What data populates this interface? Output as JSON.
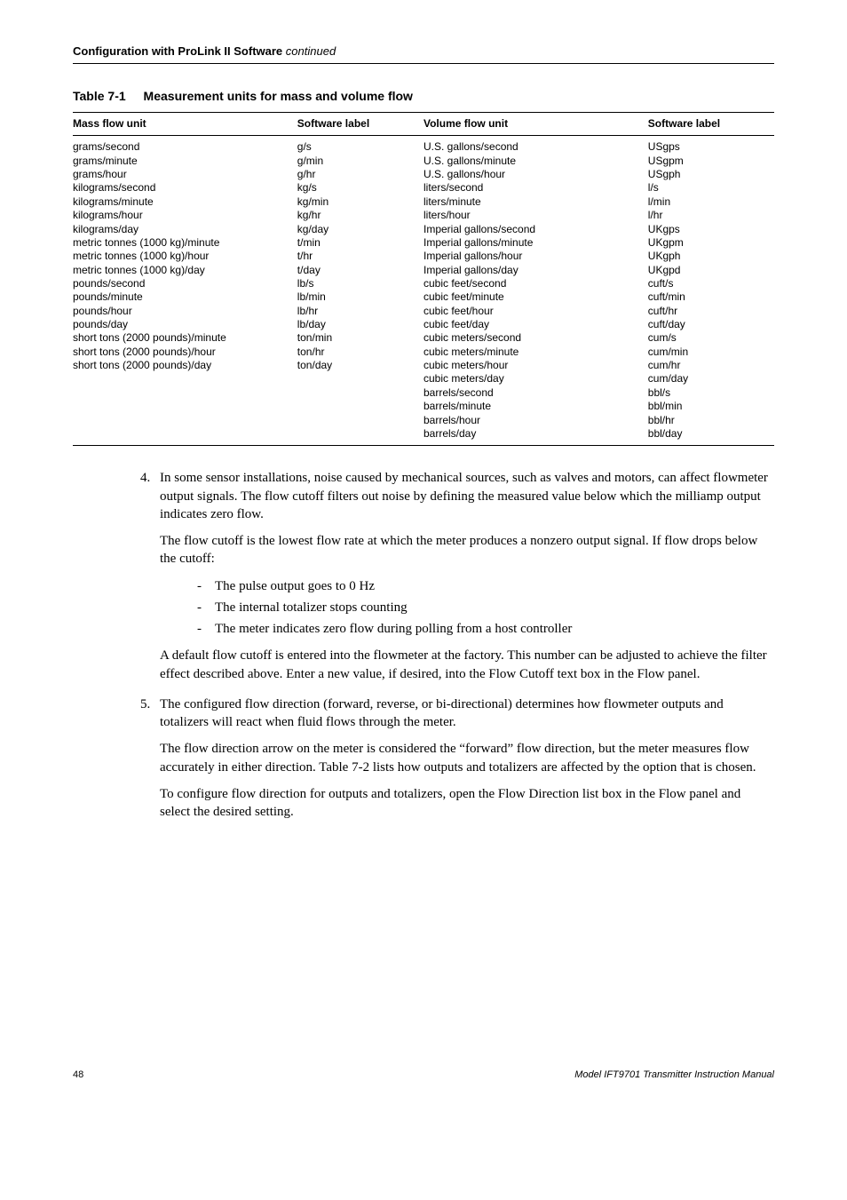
{
  "header": {
    "section_title": "Configuration with ProLink II Software",
    "continued": "continued"
  },
  "table": {
    "caption_number": "Table 7-1",
    "caption_title": "Measurement units for mass and volume flow",
    "columns": [
      "Mass flow unit",
      "Software label",
      "Volume flow unit",
      "Software label"
    ],
    "mass_units": [
      [
        "grams/second",
        "g/s"
      ],
      [
        "grams/minute",
        "g/min"
      ],
      [
        "grams/hour",
        "g/hr"
      ],
      [
        "kilograms/second",
        "kg/s"
      ],
      [
        "kilograms/minute",
        "kg/min"
      ],
      [
        "kilograms/hour",
        "kg/hr"
      ],
      [
        "kilograms/day",
        "kg/day"
      ],
      [
        "metric tonnes (1000 kg)/minute",
        "t/min"
      ],
      [
        "metric tonnes (1000 kg)/hour",
        "t/hr"
      ],
      [
        "metric tonnes (1000 kg)/day",
        "t/day"
      ],
      [
        "pounds/second",
        "lb/s"
      ],
      [
        "pounds/minute",
        "lb/min"
      ],
      [
        "pounds/hour",
        "lb/hr"
      ],
      [
        "pounds/day",
        "lb/day"
      ],
      [
        "short tons (2000 pounds)/minute",
        "ton/min"
      ],
      [
        "short tons (2000 pounds)/hour",
        "ton/hr"
      ],
      [
        "short tons (2000 pounds)/day",
        "ton/day"
      ]
    ],
    "volume_units": [
      [
        "U.S. gallons/second",
        "USgps"
      ],
      [
        "U.S. gallons/minute",
        "USgpm"
      ],
      [
        "U.S. gallons/hour",
        "USgph"
      ],
      [
        "liters/second",
        "l/s"
      ],
      [
        "liters/minute",
        "l/min"
      ],
      [
        "liters/hour",
        "l/hr"
      ],
      [
        "Imperial gallons/second",
        "UKgps"
      ],
      [
        "Imperial gallons/minute",
        "UKgpm"
      ],
      [
        "Imperial gallons/hour",
        "UKgph"
      ],
      [
        "Imperial gallons/day",
        "UKgpd"
      ],
      [
        "cubic feet/second",
        "cuft/s"
      ],
      [
        "cubic feet/minute",
        "cuft/min"
      ],
      [
        "cubic feet/hour",
        "cuft/hr"
      ],
      [
        "cubic feet/day",
        "cuft/day"
      ],
      [
        "cubic meters/second",
        "cum/s"
      ],
      [
        "cubic meters/minute",
        "cum/min"
      ],
      [
        "cubic meters/hour",
        "cum/hr"
      ],
      [
        "cubic meters/day",
        "cum/day"
      ],
      [
        "barrels/second",
        "bbl/s"
      ],
      [
        "barrels/minute",
        "bbl/min"
      ],
      [
        "barrels/hour",
        "bbl/hr"
      ],
      [
        "barrels/day",
        "bbl/day"
      ]
    ]
  },
  "body": {
    "item4": {
      "num": "4.",
      "p1": "In some sensor installations, noise caused by mechanical sources, such as valves and motors, can affect flowmeter output signals. The flow cutoff filters out noise by defining the measured value below which the milliamp output indicates zero flow.",
      "p2": "The flow cutoff is the lowest flow rate at which the meter produces a nonzero output signal. If flow drops below the cutoff:",
      "bullets": [
        "The pulse output goes to 0 Hz",
        "The internal totalizer stops counting",
        "The meter indicates zero flow during polling from a host controller"
      ],
      "p3": "A default flow cutoff is entered into the flowmeter at the factory. This number can be adjusted to achieve the filter effect described above. Enter a new value, if desired, into the Flow Cutoff text box in the Flow panel."
    },
    "item5": {
      "num": "5.",
      "p1": "The configured flow direction (forward, reverse, or bi-directional) determines how flowmeter outputs and totalizers will react when fluid flows through the meter.",
      "p2": "The flow direction arrow on the meter is considered the “forward” flow direction, but the meter measures flow accurately in either direction. Table 7-2 lists how outputs and totalizers are affected by the option that is chosen.",
      "p3": "To configure flow direction for outputs and totalizers, open the Flow Direction list box in the Flow panel and select the desired setting."
    }
  },
  "footer": {
    "page": "48",
    "doc": "Model IFT9701 Transmitter Instruction Manual"
  }
}
